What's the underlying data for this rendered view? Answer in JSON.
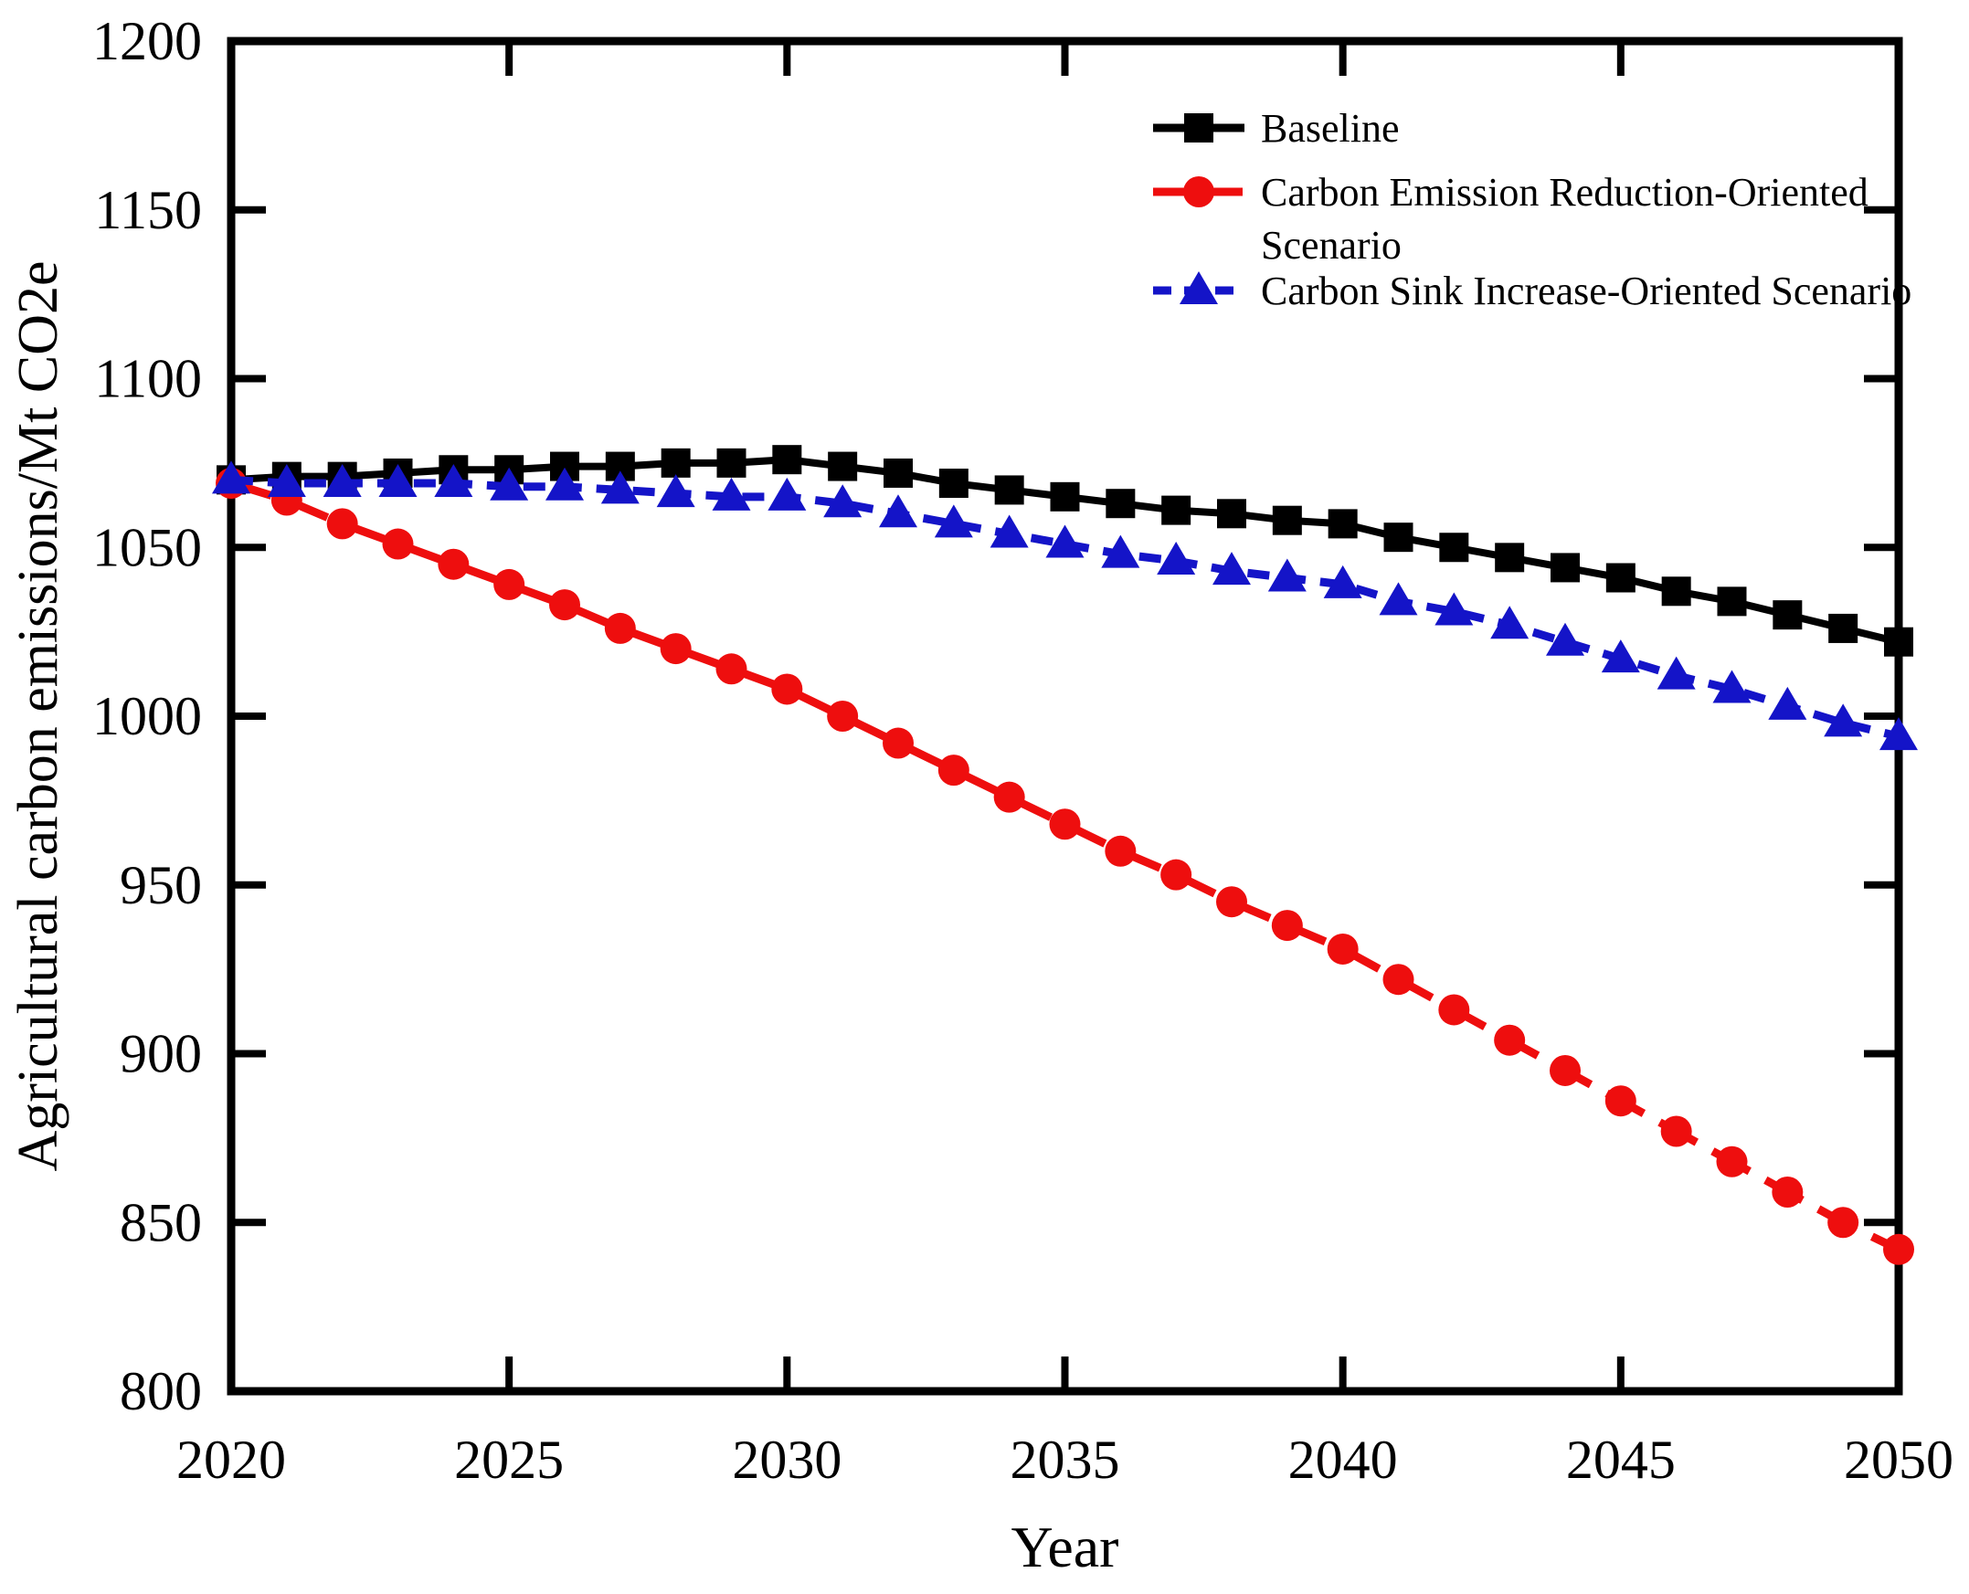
{
  "figure": {
    "background": "#ffffff",
    "frame_color": "#000000"
  },
  "chart_data": {
    "type": "line",
    "title": "",
    "xlabel": "Year",
    "ylabel": "Agricultural carbon emissions/Mt CO2e",
    "xlim": [
      2020,
      2050
    ],
    "ylim": [
      800,
      1200
    ],
    "xticks": [
      2020,
      2025,
      2030,
      2035,
      2040,
      2045,
      2050
    ],
    "yticks": [
      800,
      850,
      900,
      950,
      1000,
      1050,
      1100,
      1150,
      1200
    ],
    "grid": false,
    "legend_position": "upper-right-inside",
    "x": [
      2020,
      2021,
      2022,
      2023,
      2024,
      2025,
      2026,
      2027,
      2028,
      2029,
      2030,
      2031,
      2032,
      2033,
      2034,
      2035,
      2036,
      2037,
      2038,
      2039,
      2040,
      2041,
      2042,
      2043,
      2044,
      2045,
      2046,
      2047,
      2048,
      2049,
      2050
    ],
    "series": [
      {
        "name": "Baseline",
        "legend_lines": [
          "Baseline"
        ],
        "color": "#000000",
        "marker": "square",
        "line_style": "solid",
        "values": [
          1070,
          1071,
          1071,
          1072,
          1073,
          1073,
          1074,
          1074,
          1075,
          1075,
          1076,
          1074,
          1072,
          1069,
          1067,
          1065,
          1063,
          1061,
          1060,
          1058,
          1057,
          1053,
          1050,
          1047,
          1044,
          1041,
          1037,
          1034,
          1030,
          1026,
          1022
        ]
      },
      {
        "name": "Carbon Emission Reduction-Oriented Scenario",
        "legend_lines": [
          "Carbon Emission Reduction-Oriented",
          "Scenario"
        ],
        "color": "#ee0e0e",
        "marker": "circle",
        "line_style": "dashed-long",
        "values": [
          1069,
          1064,
          1057,
          1051,
          1045,
          1039,
          1033,
          1026,
          1020,
          1014,
          1008,
          1000,
          992,
          984,
          976,
          968,
          960,
          953,
          945,
          938,
          931,
          922,
          913,
          904,
          895,
          886,
          877,
          868,
          859,
          850,
          842
        ]
      },
      {
        "name": "Carbon Sink Increase-Oriented Scenario",
        "legend_lines": [
          "Carbon Sink Increase-Oriented Scenario"
        ],
        "color": "#1414c8",
        "marker": "triangle",
        "line_style": "dashed-short",
        "values": [
          1070,
          1069,
          1069,
          1069,
          1069,
          1068,
          1068,
          1067,
          1066,
          1065,
          1065,
          1063,
          1060,
          1057,
          1054,
          1051,
          1048,
          1046,
          1043,
          1041,
          1039,
          1034,
          1031,
          1027,
          1022,
          1017,
          1012,
          1008,
          1003,
          998,
          994
        ]
      }
    ]
  }
}
